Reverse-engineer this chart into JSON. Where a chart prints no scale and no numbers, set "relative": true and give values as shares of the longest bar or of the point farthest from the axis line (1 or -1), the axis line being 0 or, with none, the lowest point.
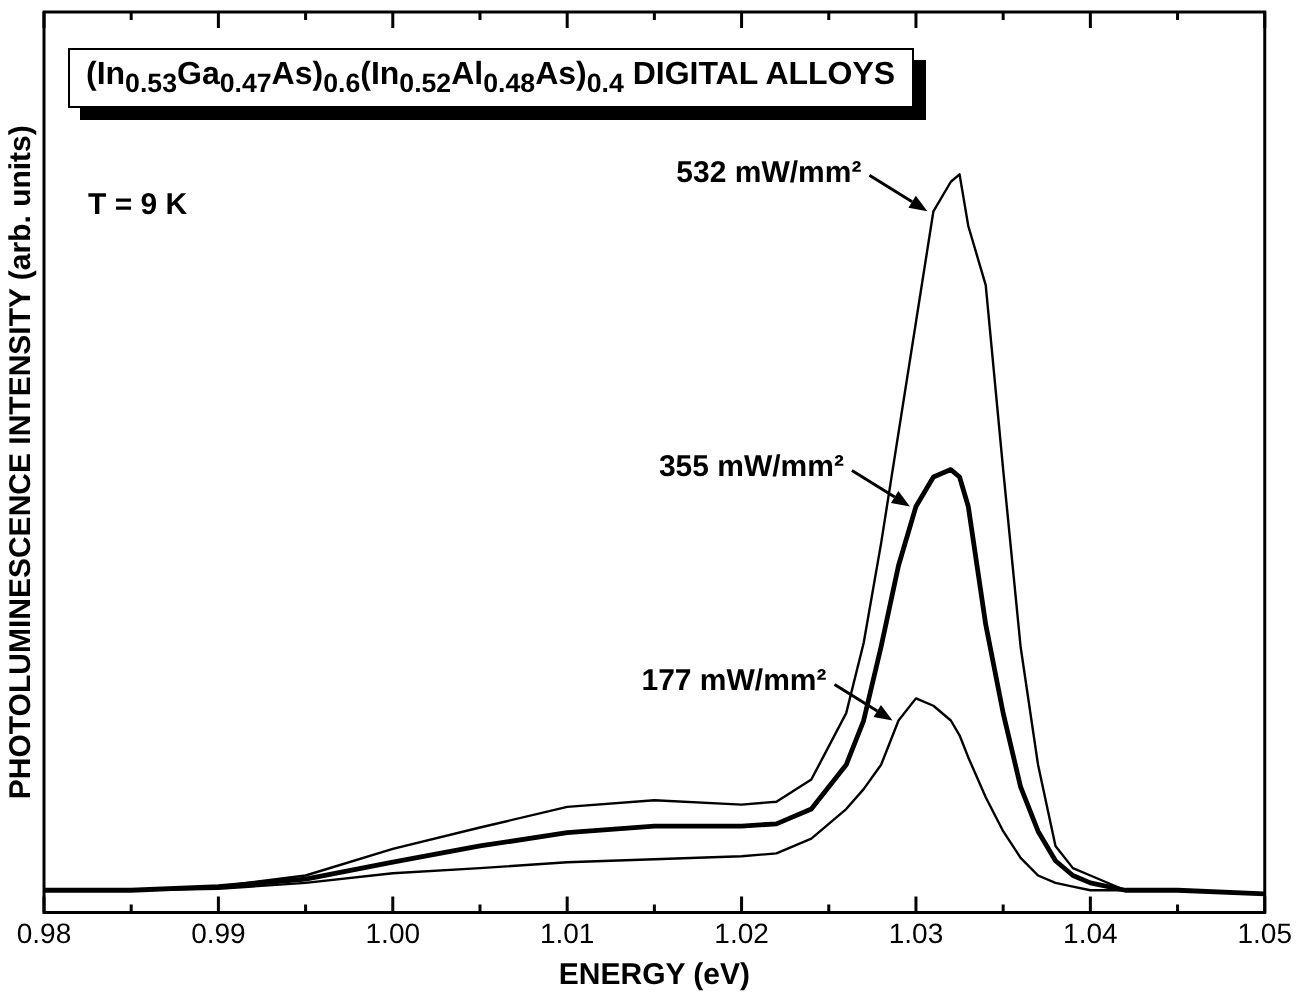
{
  "chart_data": {
    "type": "line",
    "title": "(In$_{0.53}$Ga$_{0.47}$As)$_{0.6}$(In$_{0.52}$Al$_{0.48}$As)$_{0.4}$ DIGITAL ALLOYS",
    "xlabel": "ENERGY (eV)",
    "ylabel": "PHOTOLUMINESCENCE INTENSITY (arb. units)",
    "annotations": [
      "T = 9 K"
    ],
    "relative": true,
    "xlim": [
      0.98,
      1.05
    ],
    "xticks": [
      0.98,
      {
        "value": 0.985,
        "label": null
      },
      0.99,
      {
        "value": 0.995,
        "label": null
      },
      "1.00",
      {
        "value": 1.005,
        "label": null
      },
      1.01,
      {
        "value": 1.015,
        "label": null
      },
      1.02,
      {
        "value": 1.025,
        "label": null
      },
      1.03,
      {
        "value": 1.035,
        "label": null
      },
      1.04,
      {
        "value": 1.045,
        "label": null
      },
      1.05
    ],
    "x": [
      0.98,
      0.985,
      0.99,
      0.995,
      1.0,
      1.005,
      1.01,
      1.015,
      1.02,
      1.022,
      1.024,
      1.026,
      1.027,
      1.028,
      1.029,
      1.03,
      1.031,
      1.032,
      1.0325,
      1.033,
      1.034,
      1.035,
      1.036,
      1.037,
      1.038,
      1.039,
      1.04,
      1.042,
      1.045,
      1.05
    ],
    "series": [
      {
        "name": "532 mW/mm²",
        "color": "#000000",
        "values": [
          0.03,
          0.03,
          0.035,
          0.05,
          0.086,
          0.115,
          0.143,
          0.152,
          0.146,
          0.15,
          0.18,
          0.27,
          0.365,
          0.5,
          0.65,
          0.8,
          0.95,
          0.99,
          1.0,
          0.93,
          0.85,
          0.6,
          0.36,
          0.2,
          0.09,
          0.06,
          0.05,
          0.03,
          0.03,
          0.025
        ]
      },
      {
        "name": "355 mW/mm²",
        "color": "#000000",
        "values": [
          0.03,
          0.03,
          0.035,
          0.045,
          0.068,
          0.09,
          0.108,
          0.117,
          0.117,
          0.12,
          0.14,
          0.2,
          0.26,
          0.36,
          0.47,
          0.55,
          0.59,
          0.6,
          0.59,
          0.55,
          0.39,
          0.27,
          0.17,
          0.11,
          0.07,
          0.05,
          0.04,
          0.03,
          0.03,
          0.025
        ]
      },
      {
        "name": "177 mW/mm²",
        "color": "#000000",
        "values": [
          0.03,
          0.03,
          0.032,
          0.04,
          0.053,
          0.06,
          0.068,
          0.072,
          0.076,
          0.08,
          0.1,
          0.14,
          0.167,
          0.2,
          0.26,
          0.29,
          0.28,
          0.26,
          0.24,
          0.21,
          0.156,
          0.11,
          0.074,
          0.05,
          0.04,
          0.035,
          0.03,
          0.03,
          0.03,
          0.025
        ]
      }
    ],
    "grid": false,
    "legend": "top right",
    "marker": "none",
    "line_style": "solid"
  }
}
